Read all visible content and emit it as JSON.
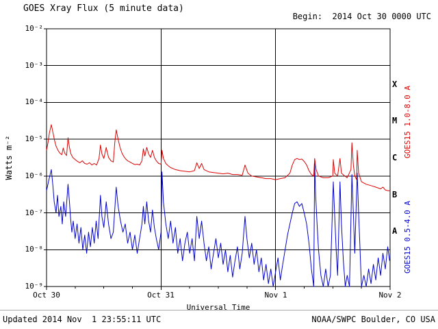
{
  "title": "GOES Xray Flux (5 minute data)",
  "begin_label": "Begin:  2014 Oct 30 0000 UTC",
  "footer": {
    "updated": "Updated 2014 Nov  1 23:55:11 UTC",
    "source": "NOAA/SWPC Boulder, CO USA"
  },
  "right_axis": {
    "flare_classes": [
      "X",
      "M",
      "C",
      "B",
      "A"
    ],
    "long_label": "GOES15 1.0-8.0 A",
    "short_label": "GOES15 0.5-4.0 A"
  },
  "colors": {
    "long": "#dd0000",
    "short": "#0000cc",
    "grid": "#000000"
  },
  "chart_data": {
    "type": "line",
    "title": "GOES Xray Flux (5 minute data)",
    "xlabel": "Universal Time",
    "ylabel": "Watts m⁻²",
    "x_unit": "hours since 2014-10-30 00:00 UTC",
    "x_range": [
      0,
      72
    ],
    "y_scale": "log",
    "y_range": [
      1e-09,
      0.01
    ],
    "grid": true,
    "x_tick_hours": [
      0,
      24,
      48,
      72
    ],
    "x_tick_labels": [
      "Oct 30",
      "Oct 31",
      "Nov 1",
      "Nov 2"
    ],
    "y_tick_labels": [
      "10⁻²",
      "10⁻³",
      "10⁻⁴",
      "10⁻⁵",
      "10⁻⁶",
      "10⁻⁷",
      "10⁻⁸",
      "10⁻⁹"
    ],
    "day_gridlines": [
      24,
      48
    ],
    "series": [
      {
        "name": "GOES15 1.0-8.0 A",
        "color": "#dd0000",
        "points": [
          [
            0.0,
            5e-06
          ],
          [
            0.3,
            8e-06
          ],
          [
            0.6,
            1.5e-05
          ],
          [
            1.0,
            2.5e-05
          ],
          [
            1.3,
            1.6e-05
          ],
          [
            1.7,
            9e-06
          ],
          [
            2.0,
            6.5e-06
          ],
          [
            2.4,
            5e-06
          ],
          [
            2.8,
            4.2e-06
          ],
          [
            3.2,
            3.8e-06
          ],
          [
            3.5,
            5.8e-06
          ],
          [
            3.8,
            4.2e-06
          ],
          [
            4.2,
            3.6e-06
          ],
          [
            4.5,
            1.1e-05
          ],
          [
            4.8,
            6e-06
          ],
          [
            5.1,
            4e-06
          ],
          [
            5.5,
            3.2e-06
          ],
          [
            6.0,
            2.8e-06
          ],
          [
            6.5,
            2.5e-06
          ],
          [
            7.0,
            2.3e-06
          ],
          [
            7.5,
            2.6e-06
          ],
          [
            8.0,
            2.2e-06
          ],
          [
            8.5,
            2.1e-06
          ],
          [
            9.0,
            2.3e-06
          ],
          [
            9.5,
            2e-06
          ],
          [
            10.0,
            2.2e-06
          ],
          [
            10.5,
            2e-06
          ],
          [
            11.0,
            3e-06
          ],
          [
            11.3,
            7e-06
          ],
          [
            11.6,
            4e-06
          ],
          [
            12.0,
            3e-06
          ],
          [
            12.5,
            6e-06
          ],
          [
            13.0,
            3.2e-06
          ],
          [
            13.5,
            2.6e-06
          ],
          [
            14.0,
            2.4e-06
          ],
          [
            14.3,
            8e-06
          ],
          [
            14.6,
            1.8e-05
          ],
          [
            15.0,
            1e-05
          ],
          [
            15.4,
            6e-06
          ],
          [
            15.8,
            4.2e-06
          ],
          [
            16.2,
            3.4e-06
          ],
          [
            16.6,
            2.9e-06
          ],
          [
            17.0,
            2.6e-06
          ],
          [
            17.5,
            2.4e-06
          ],
          [
            18.0,
            2.2e-06
          ],
          [
            18.5,
            2.05e-06
          ],
          [
            19.0,
            2.1e-06
          ],
          [
            19.5,
            2e-06
          ],
          [
            20.0,
            2.6e-06
          ],
          [
            20.3,
            5.5e-06
          ],
          [
            20.6,
            3.5e-06
          ],
          [
            21.0,
            6e-06
          ],
          [
            21.4,
            4e-06
          ],
          [
            21.8,
            3.2e-06
          ],
          [
            22.2,
            5e-06
          ],
          [
            22.6,
            3.2e-06
          ],
          [
            23.0,
            2.6e-06
          ],
          [
            23.5,
            2.2e-06
          ],
          [
            24.0,
            2.1e-06
          ],
          [
            24.2,
            5e-06
          ],
          [
            24.5,
            3e-06
          ],
          [
            25.0,
            2.2e-06
          ],
          [
            25.5,
            1.9e-06
          ],
          [
            26.0,
            1.7e-06
          ],
          [
            27.0,
            1.5e-06
          ],
          [
            28.0,
            1.4e-06
          ],
          [
            29.0,
            1.35e-06
          ],
          [
            30.0,
            1.3e-06
          ],
          [
            31.0,
            1.4e-06
          ],
          [
            31.5,
            2.3e-06
          ],
          [
            32.0,
            1.6e-06
          ],
          [
            32.5,
            2.2e-06
          ],
          [
            33.0,
            1.5e-06
          ],
          [
            34.0,
            1.3e-06
          ],
          [
            35.0,
            1.25e-06
          ],
          [
            36.0,
            1.2e-06
          ],
          [
            37.0,
            1.15e-06
          ],
          [
            38.0,
            1.2e-06
          ],
          [
            39.0,
            1.1e-06
          ],
          [
            40.0,
            1.1e-06
          ],
          [
            41.0,
            1.05e-06
          ],
          [
            41.6,
            2e-06
          ],
          [
            42.2,
            1.2e-06
          ],
          [
            43.0,
            1e-06
          ],
          [
            44.0,
            9.5e-07
          ],
          [
            45.0,
            9e-07
          ],
          [
            46.0,
            8.5e-07
          ],
          [
            47.0,
            8.5e-07
          ],
          [
            48.0,
            8e-07
          ],
          [
            49.0,
            8.5e-07
          ],
          [
            50.0,
            9e-07
          ],
          [
            51.0,
            1.2e-06
          ],
          [
            51.5,
            2e-06
          ],
          [
            52.0,
            2.8e-06
          ],
          [
            52.5,
            3e-06
          ],
          [
            53.0,
            2.8e-06
          ],
          [
            53.5,
            2.9e-06
          ],
          [
            54.0,
            2.5e-06
          ],
          [
            54.5,
            2e-06
          ],
          [
            55.0,
            1.4e-06
          ],
          [
            55.5,
            1.1e-06
          ],
          [
            56.0,
            1e-06
          ],
          [
            56.2,
            3e-06
          ],
          [
            56.5,
            1.5e-06
          ],
          [
            57.0,
            1e-06
          ],
          [
            58.0,
            9e-07
          ],
          [
            59.0,
            9e-07
          ],
          [
            60.0,
            1e-06
          ],
          [
            60.1,
            2.8e-06
          ],
          [
            60.4,
            1.2e-06
          ],
          [
            61.0,
            1e-06
          ],
          [
            61.5,
            3e-06
          ],
          [
            61.8,
            1.2e-06
          ],
          [
            62.5,
            1e-06
          ],
          [
            63.0,
            9e-07
          ],
          [
            63.8,
            1.5e-06
          ],
          [
            64.0,
            8e-06
          ],
          [
            64.3,
            2e-06
          ],
          [
            64.6,
            1e-06
          ],
          [
            65.0,
            8e-07
          ],
          [
            65.1,
            5e-06
          ],
          [
            65.4,
            1.2e-06
          ],
          [
            66.0,
            7e-07
          ],
          [
            67.0,
            6e-07
          ],
          [
            68.0,
            5.5e-07
          ],
          [
            69.0,
            5e-07
          ],
          [
            70.0,
            4.5e-07
          ],
          [
            70.5,
            5e-07
          ],
          [
            71.0,
            4.2e-07
          ],
          [
            71.5,
            4e-07
          ],
          [
            71.9,
            4e-07
          ]
        ]
      },
      {
        "name": "GOES15 0.5-4.0 A",
        "color": "#0000cc",
        "points": [
          [
            0.0,
            4e-07
          ],
          [
            0.5,
            8e-07
          ],
          [
            1.0,
            1.5e-06
          ],
          [
            1.3,
            6e-07
          ],
          [
            1.6,
            2e-07
          ],
          [
            2.0,
            1e-07
          ],
          [
            2.3,
            3e-07
          ],
          [
            2.6,
            8e-08
          ],
          [
            3.0,
            1.5e-07
          ],
          [
            3.3,
            5e-08
          ],
          [
            3.6,
            2e-07
          ],
          [
            4.0,
            8e-08
          ],
          [
            4.5,
            6e-07
          ],
          [
            4.8,
            2e-07
          ],
          [
            5.0,
            8e-08
          ],
          [
            5.3,
            3e-08
          ],
          [
            5.6,
            6e-08
          ],
          [
            6.0,
            2e-08
          ],
          [
            6.4,
            5e-08
          ],
          [
            6.8,
            1.5e-08
          ],
          [
            7.2,
            4e-08
          ],
          [
            7.6,
            1e-08
          ],
          [
            8.0,
            2.5e-08
          ],
          [
            8.4,
            8e-09
          ],
          [
            8.8,
            3e-08
          ],
          [
            9.2,
            1.2e-08
          ],
          [
            9.6,
            4e-08
          ],
          [
            10.0,
            1.5e-08
          ],
          [
            10.4,
            6e-08
          ],
          [
            10.8,
            2e-08
          ],
          [
            11.3,
            3e-07
          ],
          [
            11.6,
            8e-08
          ],
          [
            12.0,
            4e-08
          ],
          [
            12.5,
            2e-07
          ],
          [
            13.0,
            5e-08
          ],
          [
            13.5,
            2e-08
          ],
          [
            14.0,
            3e-08
          ],
          [
            14.6,
            5e-07
          ],
          [
            15.0,
            1.5e-07
          ],
          [
            15.5,
            6e-08
          ],
          [
            16.0,
            3e-08
          ],
          [
            16.5,
            5e-08
          ],
          [
            17.0,
            1.5e-08
          ],
          [
            17.5,
            3e-08
          ],
          [
            18.0,
            1e-08
          ],
          [
            18.5,
            2.5e-08
          ],
          [
            19.0,
            8e-09
          ],
          [
            19.5,
            2e-08
          ],
          [
            20.0,
            5e-08
          ],
          [
            20.3,
            1.5e-07
          ],
          [
            20.6,
            5e-08
          ],
          [
            21.0,
            2e-07
          ],
          [
            21.4,
            6e-08
          ],
          [
            21.8,
            3e-08
          ],
          [
            22.2,
            1.2e-07
          ],
          [
            22.6,
            4e-08
          ],
          [
            23.0,
            2e-08
          ],
          [
            23.5,
            1e-08
          ],
          [
            24.0,
            3e-08
          ],
          [
            24.2,
            1.3e-06
          ],
          [
            24.5,
            2e-07
          ],
          [
            25.0,
            5e-08
          ],
          [
            25.5,
            2e-08
          ],
          [
            26.0,
            6e-08
          ],
          [
            26.5,
            1.5e-08
          ],
          [
            27.0,
            4e-08
          ],
          [
            27.5,
            8e-09
          ],
          [
            28.0,
            2e-08
          ],
          [
            28.5,
            5e-09
          ],
          [
            29.0,
            1.5e-08
          ],
          [
            29.5,
            3e-08
          ],
          [
            30.0,
            8e-09
          ],
          [
            30.5,
            2e-08
          ],
          [
            31.0,
            5e-09
          ],
          [
            31.5,
            8e-08
          ],
          [
            32.0,
            2e-08
          ],
          [
            32.5,
            6e-08
          ],
          [
            33.0,
            1.5e-08
          ],
          [
            33.5,
            5e-09
          ],
          [
            34.0,
            1.2e-08
          ],
          [
            34.5,
            3e-09
          ],
          [
            35.0,
            8e-09
          ],
          [
            35.5,
            2e-08
          ],
          [
            36.0,
            6e-09
          ],
          [
            36.5,
            1.5e-08
          ],
          [
            37.0,
            4e-09
          ],
          [
            37.5,
            1e-08
          ],
          [
            38.0,
            2.5e-09
          ],
          [
            38.5,
            7e-09
          ],
          [
            39.0,
            1.8e-09
          ],
          [
            39.5,
            5e-09
          ],
          [
            40.0,
            1.2e-08
          ],
          [
            40.5,
            3e-09
          ],
          [
            41.0,
            8e-09
          ],
          [
            41.6,
            8e-08
          ],
          [
            42.0,
            2e-08
          ],
          [
            42.5,
            6e-09
          ],
          [
            43.0,
            1.5e-08
          ],
          [
            43.5,
            4e-09
          ],
          [
            44.0,
            1e-08
          ],
          [
            44.5,
            2.5e-09
          ],
          [
            45.0,
            6e-09
          ],
          [
            45.5,
            1.5e-09
          ],
          [
            46.0,
            4e-09
          ],
          [
            46.5,
            1.2e-09
          ],
          [
            47.0,
            3e-09
          ],
          [
            47.5,
            1e-09
          ],
          [
            48.0,
            2.5e-09
          ],
          [
            48.5,
            6e-09
          ],
          [
            49.0,
            1.5e-09
          ],
          [
            49.5,
            4e-09
          ],
          [
            50.0,
            1e-08
          ],
          [
            50.5,
            2.5e-08
          ],
          [
            51.0,
            5e-08
          ],
          [
            51.5,
            1e-07
          ],
          [
            52.0,
            1.8e-07
          ],
          [
            52.5,
            2e-07
          ],
          [
            53.0,
            1.5e-07
          ],
          [
            53.5,
            1.8e-07
          ],
          [
            54.0,
            1e-07
          ],
          [
            54.5,
            5e-08
          ],
          [
            55.0,
            1.5e-08
          ],
          [
            55.5,
            3e-09
          ],
          [
            56.0,
            1e-09
          ],
          [
            56.2,
            2.2e-06
          ],
          [
            56.4,
            3e-07
          ],
          [
            56.7,
            5e-08
          ],
          [
            57.0,
            1e-08
          ],
          [
            57.5,
            2e-09
          ],
          [
            58.0,
            1e-09
          ],
          [
            58.5,
            3e-09
          ],
          [
            59.0,
            1e-09
          ],
          [
            59.5,
            2e-09
          ],
          [
            60.1,
            7e-07
          ],
          [
            60.4,
            8e-08
          ],
          [
            60.7,
            1e-08
          ],
          [
            61.0,
            2e-09
          ],
          [
            61.5,
            7e-07
          ],
          [
            61.8,
            5e-08
          ],
          [
            62.2,
            5e-09
          ],
          [
            62.6,
            1e-09
          ],
          [
            63.0,
            2e-09
          ],
          [
            63.5,
            1e-09
          ],
          [
            64.0,
            1.1e-06
          ],
          [
            64.3,
            1e-07
          ],
          [
            64.6,
            8e-09
          ],
          [
            65.1,
            1.2e-06
          ],
          [
            65.4,
            1e-07
          ],
          [
            65.7,
            1e-08
          ],
          [
            66.0,
            1e-09
          ],
          [
            66.5,
            2e-09
          ],
          [
            67.0,
            1e-09
          ],
          [
            67.5,
            3e-09
          ],
          [
            68.0,
            1.2e-09
          ],
          [
            68.5,
            4e-09
          ],
          [
            69.0,
            1.5e-09
          ],
          [
            69.5,
            6e-09
          ],
          [
            70.0,
            2e-09
          ],
          [
            70.5,
            8e-09
          ],
          [
            71.0,
            3e-09
          ],
          [
            71.5,
            1.2e-08
          ],
          [
            71.9,
            5e-09
          ]
        ]
      }
    ]
  }
}
